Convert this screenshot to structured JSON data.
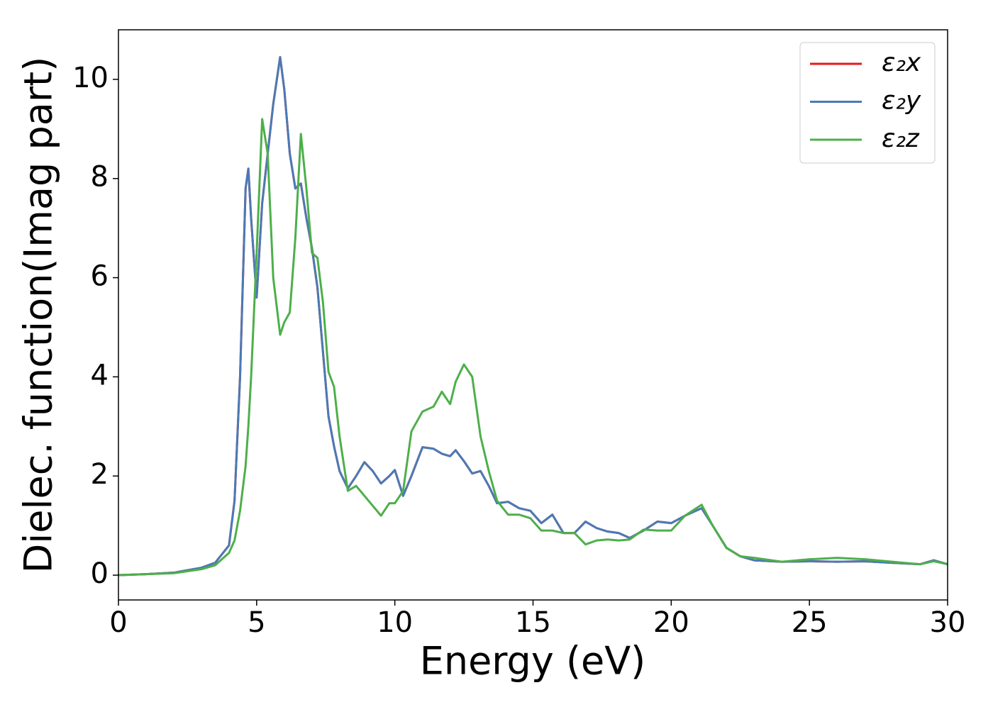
{
  "chart_data": {
    "type": "line",
    "xlabel": "Energy (eV)",
    "ylabel": "Dielec. function(Imag part)",
    "x": [
      0,
      1,
      2,
      3,
      3.5,
      4,
      4.2,
      4.4,
      4.6,
      4.7,
      4.8,
      5.0,
      5.2,
      5.4,
      5.6,
      5.85,
      6.0,
      6.2,
      6.4,
      6.6,
      6.8,
      7.0,
      7.2,
      7.4,
      7.6,
      7.8,
      8.0,
      8.3,
      8.6,
      8.9,
      9.2,
      9.5,
      9.8,
      10.0,
      10.3,
      10.6,
      11.0,
      11.4,
      11.7,
      12.0,
      12.2,
      12.5,
      12.8,
      13.1,
      13.4,
      13.7,
      14.1,
      14.5,
      14.9,
      15.3,
      15.7,
      16.1,
      16.5,
      16.9,
      17.3,
      17.7,
      18.1,
      18.5,
      19.0,
      19.5,
      20.0,
      20.5,
      21.1,
      21.5,
      22.0,
      22.5,
      23,
      24,
      25,
      26,
      27,
      28,
      29,
      29.5,
      30
    ],
    "series": [
      {
        "name": "ε₂x",
        "color": "#e41a1c",
        "values": [
          0,
          0.02,
          0.05,
          0.15,
          0.25,
          0.6,
          1.5,
          4.0,
          7.8,
          8.2,
          7.2,
          5.6,
          7.5,
          8.5,
          9.5,
          10.45,
          9.8,
          8.5,
          7.8,
          7.9,
          7.2,
          6.6,
          5.8,
          4.5,
          3.2,
          2.6,
          2.1,
          1.75,
          2.0,
          2.28,
          2.1,
          1.85,
          2.0,
          2.12,
          1.6,
          2.0,
          2.58,
          2.55,
          2.45,
          2.4,
          2.52,
          2.3,
          2.05,
          2.1,
          1.8,
          1.45,
          1.48,
          1.35,
          1.3,
          1.05,
          1.22,
          0.85,
          0.85,
          1.08,
          0.95,
          0.88,
          0.85,
          0.75,
          0.9,
          1.08,
          1.05,
          1.2,
          1.35,
          1.0,
          0.55,
          0.38,
          0.3,
          0.27,
          0.28,
          0.27,
          0.28,
          0.25,
          0.22,
          0.3,
          0.22
        ]
      },
      {
        "name": "ε₂y",
        "color": "#4a7ab5",
        "values": [
          0,
          0.02,
          0.05,
          0.15,
          0.25,
          0.6,
          1.5,
          4.0,
          7.8,
          8.2,
          7.2,
          5.6,
          7.5,
          8.5,
          9.5,
          10.45,
          9.8,
          8.5,
          7.8,
          7.9,
          7.2,
          6.6,
          5.8,
          4.5,
          3.2,
          2.6,
          2.1,
          1.75,
          2.0,
          2.28,
          2.1,
          1.85,
          2.0,
          2.12,
          1.6,
          2.0,
          2.58,
          2.55,
          2.45,
          2.4,
          2.52,
          2.3,
          2.05,
          2.1,
          1.8,
          1.45,
          1.48,
          1.35,
          1.3,
          1.05,
          1.22,
          0.85,
          0.85,
          1.08,
          0.95,
          0.88,
          0.85,
          0.75,
          0.9,
          1.08,
          1.05,
          1.2,
          1.35,
          1.0,
          0.55,
          0.38,
          0.3,
          0.27,
          0.28,
          0.27,
          0.28,
          0.25,
          0.22,
          0.3,
          0.22
        ]
      },
      {
        "name": "ε₂z",
        "color": "#4daf4a",
        "values": [
          0,
          0.02,
          0.04,
          0.12,
          0.2,
          0.45,
          0.7,
          1.3,
          2.2,
          3.0,
          4.0,
          6.5,
          9.2,
          8.5,
          6.0,
          4.85,
          5.1,
          5.3,
          6.8,
          8.9,
          7.8,
          6.5,
          6.4,
          5.5,
          4.1,
          3.8,
          2.8,
          1.7,
          1.8,
          1.6,
          1.4,
          1.2,
          1.45,
          1.45,
          1.7,
          2.9,
          3.3,
          3.4,
          3.7,
          3.45,
          3.9,
          4.25,
          4.0,
          2.8,
          2.1,
          1.5,
          1.22,
          1.22,
          1.15,
          0.9,
          0.9,
          0.85,
          0.85,
          0.62,
          0.7,
          0.72,
          0.7,
          0.72,
          0.92,
          0.9,
          0.9,
          1.2,
          1.42,
          1.0,
          0.55,
          0.38,
          0.35,
          0.27,
          0.32,
          0.35,
          0.32,
          0.27,
          0.22,
          0.28,
          0.22
        ]
      }
    ],
    "xlim": [
      0,
      30
    ],
    "xticks": [
      0,
      5,
      10,
      15,
      20,
      25,
      30
    ],
    "ylim": [
      -0.5,
      11
    ],
    "yticks": [
      0,
      2,
      4,
      6,
      8,
      10
    ],
    "legend": "upper right"
  }
}
